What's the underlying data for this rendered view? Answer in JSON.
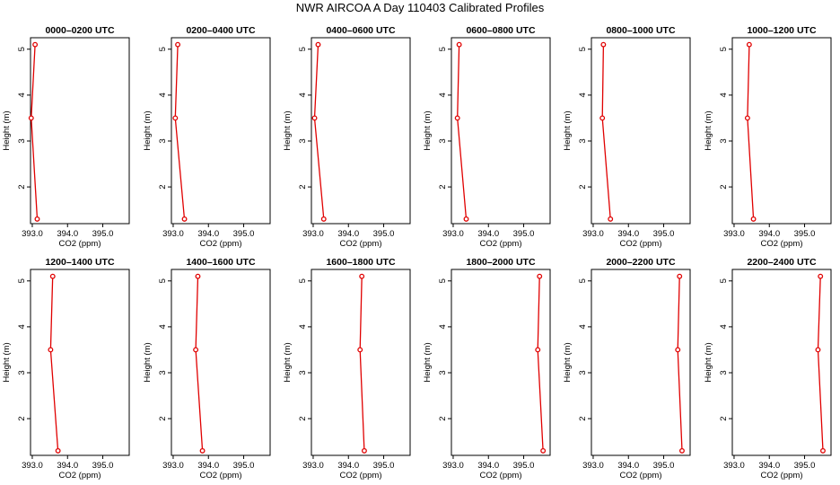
{
  "figure": {
    "title": "NWR AIRCOA A  Day 110403  Calibrated Profiles"
  },
  "colors": {
    "line": "#e00000",
    "marker": "#e00000",
    "axis": "#000000"
  },
  "chart_data": [
    {
      "type": "line",
      "title": "0000–0200 UTC",
      "xlabel": "CO2 (ppm)",
      "ylabel": "Height (m)",
      "xlim": [
        393.0,
        395.65
      ],
      "ylim": [
        1.3,
        5.1
      ],
      "xticks": [
        "393.0",
        "394.0",
        "395.0"
      ],
      "yticks": [
        "2",
        "3",
        "4",
        "5"
      ],
      "x": [
        393.08,
        392.97,
        393.14
      ],
      "y": [
        5.1,
        3.5,
        1.3
      ]
    },
    {
      "type": "line",
      "title": "0200–0400 UTC",
      "xlabel": "CO2 (ppm)",
      "ylabel": "Height (m)",
      "xlim": [
        393.0,
        395.65
      ],
      "ylim": [
        1.3,
        5.1
      ],
      "xticks": [
        "393.0",
        "394.0",
        "395.0"
      ],
      "yticks": [
        "2",
        "3",
        "4",
        "5"
      ],
      "x": [
        393.13,
        393.06,
        393.32
      ],
      "y": [
        5.1,
        3.5,
        1.3
      ]
    },
    {
      "type": "line",
      "title": "0400–0600 UTC",
      "xlabel": "CO2 (ppm)",
      "ylabel": "Height (m)",
      "xlim": [
        393.0,
        395.65
      ],
      "ylim": [
        1.3,
        5.1
      ],
      "xticks": [
        "393.0",
        "394.0",
        "395.0"
      ],
      "yticks": [
        "2",
        "3",
        "4",
        "5"
      ],
      "x": [
        393.14,
        393.04,
        393.3
      ],
      "y": [
        5.1,
        3.5,
        1.3
      ]
    },
    {
      "type": "line",
      "title": "0600–0800 UTC",
      "xlabel": "CO2 (ppm)",
      "ylabel": "Height (m)",
      "xlim": [
        393.0,
        395.65
      ],
      "ylim": [
        1.3,
        5.1
      ],
      "xticks": [
        "393.0",
        "394.0",
        "395.0"
      ],
      "yticks": [
        "2",
        "3",
        "4",
        "5"
      ],
      "x": [
        393.17,
        393.12,
        393.37
      ],
      "y": [
        5.1,
        3.5,
        1.3
      ]
    },
    {
      "type": "line",
      "title": "0800–1000 UTC",
      "xlabel": "CO2 (ppm)",
      "ylabel": "Height (m)",
      "xlim": [
        393.0,
        395.65
      ],
      "ylim": [
        1.3,
        5.1
      ],
      "xticks": [
        "393.0",
        "394.0",
        "395.0"
      ],
      "yticks": [
        "2",
        "3",
        "4",
        "5"
      ],
      "x": [
        393.29,
        393.26,
        393.49
      ],
      "y": [
        5.1,
        3.5,
        1.3
      ]
    },
    {
      "type": "line",
      "title": "1000–1200 UTC",
      "xlabel": "CO2 (ppm)",
      "ylabel": "Height (m)",
      "xlim": [
        393.0,
        395.65
      ],
      "ylim": [
        1.3,
        5.1
      ],
      "xticks": [
        "393.0",
        "394.0",
        "395.0"
      ],
      "yticks": [
        "2",
        "3",
        "4",
        "5"
      ],
      "x": [
        393.43,
        393.38,
        393.55
      ],
      "y": [
        5.1,
        3.5,
        1.3
      ]
    },
    {
      "type": "line",
      "title": "1200–1400 UTC",
      "xlabel": "CO2 (ppm)",
      "ylabel": "Height (m)",
      "xlim": [
        393.0,
        395.65
      ],
      "ylim": [
        1.3,
        5.1
      ],
      "xticks": [
        "393.0",
        "394.0",
        "395.0"
      ],
      "yticks": [
        "2",
        "3",
        "4",
        "5"
      ],
      "x": [
        393.58,
        393.52,
        393.73
      ],
      "y": [
        5.1,
        3.5,
        1.3
      ]
    },
    {
      "type": "line",
      "title": "1400–1600 UTC",
      "xlabel": "CO2 (ppm)",
      "ylabel": "Height (m)",
      "xlim": [
        393.0,
        395.65
      ],
      "ylim": [
        1.3,
        5.1
      ],
      "xticks": [
        "393.0",
        "394.0",
        "395.0"
      ],
      "yticks": [
        "2",
        "3",
        "4",
        "5"
      ],
      "x": [
        393.7,
        393.64,
        393.83
      ],
      "y": [
        5.1,
        3.5,
        1.3
      ]
    },
    {
      "type": "line",
      "title": "1600–1800 UTC",
      "xlabel": "CO2 (ppm)",
      "ylabel": "Height (m)",
      "xlim": [
        393.0,
        395.65
      ],
      "ylim": [
        1.3,
        5.1
      ],
      "xticks": [
        "393.0",
        "394.0",
        "395.0"
      ],
      "yticks": [
        "2",
        "3",
        "4",
        "5"
      ],
      "x": [
        394.38,
        394.33,
        394.45
      ],
      "y": [
        5.1,
        3.5,
        1.3
      ]
    },
    {
      "type": "line",
      "title": "1800–2000 UTC",
      "xlabel": "CO2 (ppm)",
      "ylabel": "Height (m)",
      "xlim": [
        393.0,
        395.65
      ],
      "ylim": [
        1.3,
        5.1
      ],
      "xticks": [
        "393.0",
        "394.0",
        "395.0"
      ],
      "yticks": [
        "2",
        "3",
        "4",
        "5"
      ],
      "x": [
        395.45,
        395.4,
        395.55
      ],
      "y": [
        5.1,
        3.5,
        1.3
      ]
    },
    {
      "type": "line",
      "title": "2000–2200 UTC",
      "xlabel": "CO2 (ppm)",
      "ylabel": "Height (m)",
      "xlim": [
        393.0,
        395.65
      ],
      "ylim": [
        1.3,
        5.1
      ],
      "xticks": [
        "393.0",
        "394.0",
        "395.0"
      ],
      "yticks": [
        "2",
        "3",
        "4",
        "5"
      ],
      "x": [
        395.45,
        395.4,
        395.52
      ],
      "y": [
        5.1,
        3.5,
        1.3
      ]
    },
    {
      "type": "line",
      "title": "2200–2400 UTC",
      "xlabel": "CO2 (ppm)",
      "ylabel": "Height (m)",
      "xlim": [
        393.0,
        395.65
      ],
      "ylim": [
        1.3,
        5.1
      ],
      "xticks": [
        "393.0",
        "394.0",
        "395.0"
      ],
      "yticks": [
        "2",
        "3",
        "4",
        "5"
      ],
      "x": [
        395.45,
        395.38,
        395.52
      ],
      "y": [
        5.1,
        3.5,
        1.3
      ]
    }
  ]
}
